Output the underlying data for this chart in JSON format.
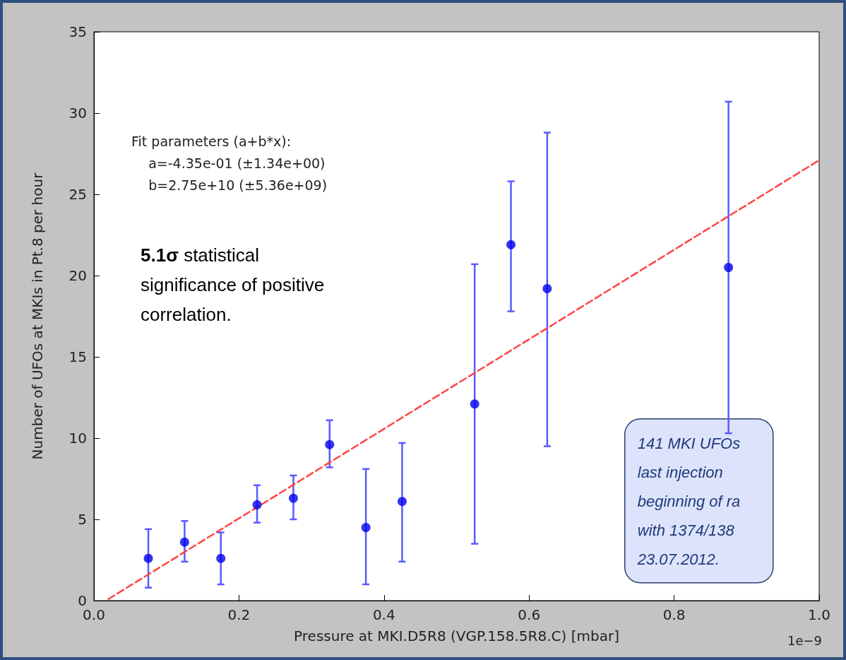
{
  "chart_data": {
    "type": "scatter",
    "xlabel": "Pressure at MKI.D5R8 (VGP.158.5R8.C) [mbar]",
    "ylabel": "Number of UFOs at MKIs in Pt.8 per hour",
    "xlim": [
      0,
      1.0
    ],
    "xticks": [
      {
        "value": 0,
        "label": "0.0"
      },
      0.2,
      0.4,
      0.6,
      0.8,
      {
        "value": 1.0,
        "label": "1.0"
      }
    ],
    "ylim": [
      0,
      35
    ],
    "yticks": [
      0,
      5,
      10,
      15,
      20,
      25,
      30,
      35
    ],
    "grid": false,
    "marker": "circle",
    "series": [
      {
        "color": "#0000ee",
        "x": [
          0.075,
          0.125,
          0.175,
          0.225,
          0.275,
          0.325,
          0.375,
          0.425,
          0.525,
          0.575,
          0.625,
          0.875
        ],
        "values": [
          2.6,
          3.6,
          2.6,
          5.9,
          6.3,
          9.6,
          4.5,
          6.1,
          12.1,
          21.9,
          19.2,
          20.5
        ],
        "errors": [
          [
            0.8,
            4.4
          ],
          [
            2.4,
            4.9
          ],
          [
            1.0,
            4.2
          ],
          [
            4.8,
            7.1
          ],
          [
            5.0,
            7.7
          ],
          [
            8.2,
            11.1
          ],
          [
            1.0,
            8.1
          ],
          [
            2.4,
            9.7
          ],
          [
            3.5,
            20.7
          ],
          [
            17.8,
            25.8
          ],
          [
            9.5,
            28.8
          ],
          [
            10.3,
            30.7
          ]
        ]
      },
      {
        "type": "line",
        "color": "#ff4444",
        "line_style": "dashed",
        "marker": "none",
        "x": [
          0.02,
          1.0
        ],
        "values": [
          0.1,
          27.1
        ]
      }
    ],
    "annotations": [
      "Fit parameters (a+b*x):\n    a=-4.35e-01 (±1.34e+00)\n    b=2.75e+10 (±5.36e+09)",
      "5.1σ statistical\nsignificance of positive\ncorrelation.",
      "141 MKI UFOs\nlast injection\nbeginning of ra\nwith 1374/138\n23.07.2012.",
      "1e−9"
    ]
  }
}
